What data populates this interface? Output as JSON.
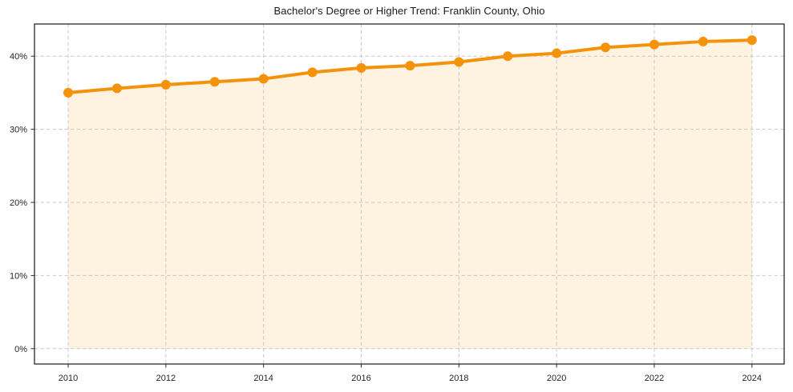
{
  "chart_data": {
    "type": "line",
    "title": "Bachelor's Degree or Higher Trend: Franklin County, Ohio",
    "xlabel": "",
    "ylabel": "",
    "x": [
      2010,
      2011,
      2012,
      2013,
      2014,
      2015,
      2016,
      2017,
      2018,
      2019,
      2020,
      2021,
      2022,
      2023,
      2024
    ],
    "values": [
      35.0,
      35.6,
      36.1,
      36.5,
      36.9,
      37.8,
      38.4,
      38.7,
      39.2,
      40.0,
      40.4,
      41.2,
      41.6,
      42.0,
      42.2
    ],
    "unit": "%",
    "xlim": [
      2009.31,
      2024.66
    ],
    "ylim": [
      -2.1,
      44.4
    ],
    "xticks": {
      "values": [
        2010,
        2012,
        2014,
        2016,
        2018,
        2020,
        2022,
        2024
      ],
      "labels": [
        "2010",
        "2012",
        "2014",
        "2016",
        "2018",
        "2020",
        "2022",
        "2024"
      ]
    },
    "yticks": {
      "values": [
        0,
        10,
        20,
        30,
        40
      ],
      "labels": [
        "0%",
        "10%",
        "20%",
        "30%",
        "40%"
      ]
    },
    "grid": true,
    "grid_style": "dashed",
    "legend": false,
    "area_fill_to": 0,
    "style": {
      "line_color": "#f5920b",
      "marker_color": "#f5920b",
      "fill_color": "#f5920b",
      "fill_opacity": 0.12,
      "grid_color": "#c9c9c9",
      "axis_color": "#2a2a2a",
      "text_color": "#262626",
      "title_color": "#1a1a1a",
      "background": "#ffffff"
    }
  }
}
